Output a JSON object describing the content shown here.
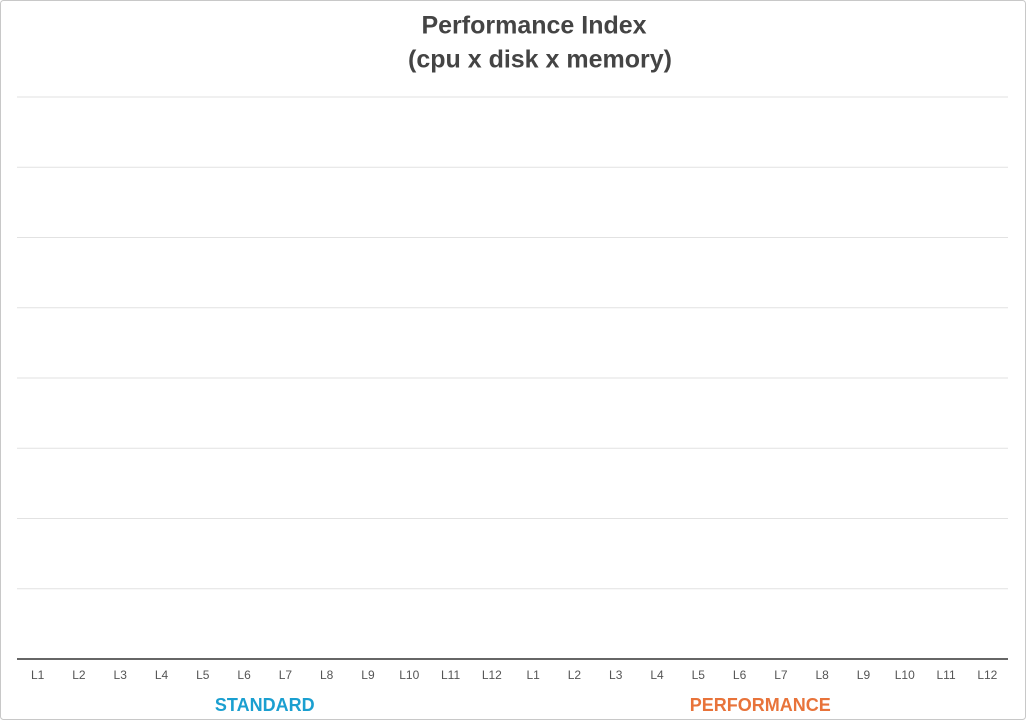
{
  "chart_data": {
    "type": "bar",
    "title": [
      "Performance Index",
      "(cpu x disk x memory)"
    ],
    "groups": [
      {
        "name": "STANDARD",
        "color": "#1a9fd0",
        "categories": [
          "L1",
          "L2",
          "L3",
          "L4",
          "L5",
          "L6",
          "L7",
          "L8",
          "L9",
          "L10",
          "L11",
          "L12"
        ],
        "values": [
          null,
          null,
          null,
          null,
          null,
          null,
          null,
          null,
          null,
          null,
          null,
          null
        ]
      },
      {
        "name": "PERFORMANCE",
        "color": "#e8733a",
        "categories": [
          "L1",
          "L2",
          "L3",
          "L4",
          "L5",
          "L6",
          "L7",
          "L8",
          "L9",
          "L10",
          "L11",
          "L12"
        ],
        "values": [
          null,
          null,
          null,
          null,
          null,
          null,
          null,
          null,
          null,
          null,
          null,
          null
        ]
      }
    ],
    "grid": true
  }
}
